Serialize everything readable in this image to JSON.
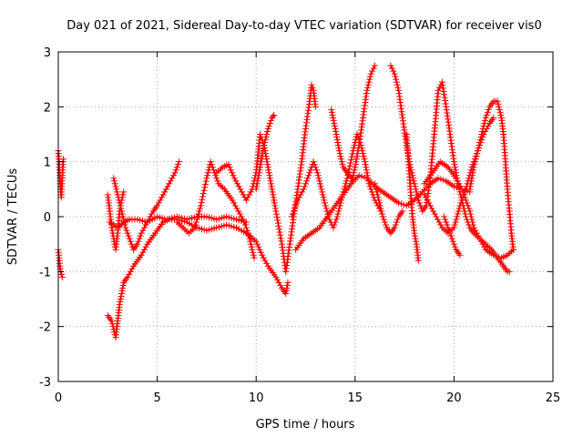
{
  "chart_data": {
    "type": "scatter",
    "title": "Day 021 of 2021, Sidereal Day-to-day VTEC variation (SDTVAR) for receiver vis0",
    "xlabel": "GPS time / hours",
    "ylabel": "SDTVAR / TECUs",
    "xlim": [
      0,
      25
    ],
    "ylim": [
      -3,
      3
    ],
    "xticks": [
      "0",
      "5",
      "10",
      "15",
      "20",
      "25"
    ],
    "yticks": [
      "-3",
      "-2",
      "-1",
      "0",
      "1",
      "2",
      "3"
    ],
    "grid": true,
    "marker": "plus",
    "color": "#ff0000",
    "series": [
      {
        "name": "trace-1",
        "points": [
          [
            0.0,
            1.2
          ],
          [
            0.05,
            0.9
          ],
          [
            0.1,
            0.6
          ],
          [
            0.15,
            0.35
          ],
          [
            0.2,
            0.7
          ],
          [
            0.25,
            1.05
          ]
        ]
      },
      {
        "name": "trace-2",
        "points": [
          [
            0.0,
            -0.6
          ],
          [
            0.05,
            -0.8
          ],
          [
            0.1,
            -0.95
          ],
          [
            0.15,
            -1.05
          ],
          [
            0.2,
            -1.1
          ]
        ]
      },
      {
        "name": "trace-3",
        "points": [
          [
            2.5,
            -1.8
          ],
          [
            2.7,
            -1.9
          ],
          [
            2.9,
            -2.2
          ],
          [
            3.0,
            -1.9
          ],
          [
            3.1,
            -1.6
          ],
          [
            3.2,
            -1.4
          ],
          [
            3.3,
            -1.2
          ],
          [
            3.5,
            -1.1
          ],
          [
            3.8,
            -0.9
          ],
          [
            4.2,
            -0.7
          ],
          [
            4.5,
            -0.5
          ],
          [
            4.9,
            -0.3
          ],
          [
            5.3,
            -0.1
          ],
          [
            5.6,
            -0.05
          ],
          [
            6.0,
            -0.05
          ],
          [
            6.5,
            -0.1
          ],
          [
            7.0,
            -0.2
          ],
          [
            7.5,
            -0.25
          ],
          [
            8.0,
            -0.2
          ],
          [
            8.5,
            -0.15
          ],
          [
            9.0,
            -0.2
          ],
          [
            9.5,
            -0.3
          ],
          [
            10.0,
            -0.45
          ],
          [
            10.3,
            -0.7
          ],
          [
            10.6,
            -0.9
          ],
          [
            11.0,
            -1.1
          ],
          [
            11.3,
            -1.3
          ],
          [
            11.5,
            -1.4
          ],
          [
            11.6,
            -1.2
          ]
        ]
      },
      {
        "name": "trace-4",
        "points": [
          [
            2.5,
            0.4
          ],
          [
            2.6,
            0.1
          ],
          [
            2.7,
            -0.2
          ],
          [
            2.8,
            -0.4
          ],
          [
            2.9,
            -0.6
          ],
          [
            3.0,
            -0.3
          ],
          [
            3.1,
            0.1
          ],
          [
            3.2,
            0.3
          ],
          [
            3.3,
            0.45
          ]
        ]
      },
      {
        "name": "trace-5",
        "points": [
          [
            2.8,
            0.7
          ],
          [
            3.0,
            0.4
          ],
          [
            3.2,
            0.1
          ],
          [
            3.4,
            -0.2
          ],
          [
            3.6,
            -0.4
          ],
          [
            3.8,
            -0.6
          ],
          [
            4.0,
            -0.5
          ],
          [
            4.2,
            -0.3
          ],
          [
            4.5,
            -0.1
          ],
          [
            4.8,
            0.1
          ],
          [
            5.0,
            0.2
          ],
          [
            5.3,
            0.4
          ],
          [
            5.6,
            0.6
          ],
          [
            5.9,
            0.8
          ],
          [
            6.1,
            1.0
          ]
        ]
      },
      {
        "name": "trace-6",
        "points": [
          [
            2.6,
            -0.1
          ],
          [
            3.0,
            -0.2
          ],
          [
            3.3,
            -0.1
          ],
          [
            3.6,
            -0.05
          ],
          [
            4.0,
            -0.05
          ],
          [
            4.5,
            -0.1
          ],
          [
            5.0,
            0.0
          ],
          [
            5.5,
            -0.05
          ],
          [
            6.0,
            0.0
          ],
          [
            6.5,
            -0.05
          ],
          [
            7.0,
            0.0
          ],
          [
            7.5,
            0.0
          ],
          [
            8.0,
            -0.05
          ],
          [
            8.5,
            0.0
          ],
          [
            9.0,
            -0.05
          ],
          [
            9.5,
            -0.1
          ]
        ]
      },
      {
        "name": "trace-7",
        "points": [
          [
            6.0,
            -0.1
          ],
          [
            6.3,
            -0.2
          ],
          [
            6.6,
            -0.3
          ],
          [
            6.9,
            -0.2
          ],
          [
            7.2,
            0.2
          ],
          [
            7.5,
            0.7
          ],
          [
            7.7,
            1.0
          ],
          [
            7.9,
            0.8
          ],
          [
            8.1,
            0.6
          ],
          [
            8.4,
            0.5
          ],
          [
            8.8,
            0.3
          ],
          [
            9.1,
            0.1
          ],
          [
            9.4,
            -0.1
          ],
          [
            9.6,
            -0.3
          ],
          [
            9.8,
            -0.6
          ],
          [
            9.9,
            -0.75
          ]
        ]
      },
      {
        "name": "trace-8",
        "points": [
          [
            8.0,
            0.8
          ],
          [
            8.3,
            0.9
          ],
          [
            8.6,
            0.95
          ],
          [
            8.9,
            0.7
          ],
          [
            9.2,
            0.5
          ],
          [
            9.5,
            0.3
          ],
          [
            9.8,
            0.5
          ],
          [
            10.0,
            0.8
          ],
          [
            10.2,
            1.5
          ],
          [
            10.4,
            1.3
          ],
          [
            10.6,
            0.9
          ],
          [
            10.8,
            0.5
          ],
          [
            11.0,
            0.1
          ],
          [
            11.3,
            -0.5
          ],
          [
            11.5,
            -1.0
          ]
        ]
      },
      {
        "name": "trace-9",
        "points": [
          [
            10.0,
            0.5
          ],
          [
            10.2,
            0.9
          ],
          [
            10.4,
            1.3
          ],
          [
            10.6,
            1.6
          ],
          [
            10.8,
            1.8
          ],
          [
            10.9,
            1.85
          ]
        ]
      },
      {
        "name": "trace-10",
        "points": [
          [
            11.5,
            -1.0
          ],
          [
            11.7,
            -0.5
          ],
          [
            11.9,
            0.0
          ],
          [
            12.1,
            0.5
          ],
          [
            12.3,
            1.0
          ],
          [
            12.5,
            1.6
          ],
          [
            12.7,
            2.1
          ],
          [
            12.8,
            2.4
          ],
          [
            12.9,
            2.3
          ],
          [
            13.0,
            2.0
          ]
        ]
      },
      {
        "name": "trace-11",
        "points": [
          [
            11.8,
            0.0
          ],
          [
            12.1,
            0.3
          ],
          [
            12.4,
            0.5
          ],
          [
            12.7,
            0.8
          ],
          [
            12.9,
            1.0
          ],
          [
            13.1,
            0.8
          ],
          [
            13.3,
            0.5
          ],
          [
            13.5,
            0.2
          ],
          [
            13.7,
            -0.05
          ],
          [
            13.9,
            -0.2
          ],
          [
            14.1,
            0.0
          ],
          [
            14.3,
            0.3
          ],
          [
            14.6,
            0.7
          ],
          [
            14.9,
            1.2
          ],
          [
            15.1,
            1.5
          ],
          [
            15.3,
            1.3
          ],
          [
            15.5,
            1.0
          ],
          [
            15.7,
            0.6
          ],
          [
            16.0,
            0.3
          ],
          [
            16.3,
            0.1
          ]
        ]
      },
      {
        "name": "trace-12",
        "points": [
          [
            12.0,
            -0.6
          ],
          [
            12.4,
            -0.4
          ],
          [
            12.8,
            -0.3
          ],
          [
            13.2,
            -0.2
          ],
          [
            13.6,
            0.0
          ],
          [
            14.0,
            0.2
          ],
          [
            14.4,
            0.4
          ],
          [
            14.8,
            0.6
          ],
          [
            15.2,
            0.75
          ],
          [
            15.6,
            0.7
          ],
          [
            16.0,
            0.55
          ],
          [
            16.4,
            0.45
          ],
          [
            16.8,
            0.35
          ],
          [
            17.2,
            0.25
          ],
          [
            17.6,
            0.2
          ],
          [
            18.0,
            0.3
          ],
          [
            18.4,
            0.45
          ],
          [
            18.8,
            0.6
          ],
          [
            19.2,
            0.7
          ],
          [
            19.6,
            0.65
          ],
          [
            20.0,
            0.55
          ],
          [
            20.4,
            0.5
          ],
          [
            20.8,
            0.45
          ]
        ]
      },
      {
        "name": "trace-13",
        "points": [
          [
            13.8,
            1.95
          ],
          [
            14.0,
            1.6
          ],
          [
            14.2,
            1.2
          ],
          [
            14.4,
            0.9
          ],
          [
            14.6,
            0.8
          ],
          [
            14.8,
            0.7
          ]
        ]
      },
      {
        "name": "trace-14",
        "points": [
          [
            14.8,
            0.6
          ],
          [
            15.0,
            0.9
          ],
          [
            15.2,
            1.3
          ],
          [
            15.4,
            1.8
          ],
          [
            15.6,
            2.3
          ],
          [
            15.8,
            2.6
          ],
          [
            16.0,
            2.75
          ]
        ]
      },
      {
        "name": "trace-15",
        "points": [
          [
            16.0,
            0.6
          ],
          [
            16.2,
            0.3
          ],
          [
            16.4,
            0.0
          ],
          [
            16.6,
            -0.2
          ],
          [
            16.8,
            -0.3
          ],
          [
            17.0,
            -0.2
          ],
          [
            17.2,
            0.0
          ],
          [
            17.4,
            0.1
          ]
        ]
      },
      {
        "name": "trace-16",
        "points": [
          [
            16.8,
            2.75
          ],
          [
            17.0,
            2.6
          ],
          [
            17.2,
            2.3
          ],
          [
            17.4,
            1.8
          ],
          [
            17.6,
            1.3
          ],
          [
            17.8,
            0.9
          ],
          [
            18.0,
            0.6
          ],
          [
            18.2,
            0.3
          ],
          [
            18.4,
            0.1
          ],
          [
            18.6,
            0.2
          ],
          [
            18.8,
            0.7
          ],
          [
            19.0,
            1.5
          ],
          [
            19.2,
            2.3
          ],
          [
            19.4,
            2.45
          ],
          [
            19.6,
            2.0
          ],
          [
            19.8,
            1.5
          ],
          [
            20.0,
            1.0
          ],
          [
            20.2,
            0.6
          ],
          [
            20.4,
            0.3
          ],
          [
            20.6,
            0.0
          ],
          [
            20.8,
            -0.2
          ],
          [
            21.0,
            -0.3
          ],
          [
            21.3,
            -0.4
          ],
          [
            21.6,
            -0.5
          ],
          [
            21.9,
            -0.6
          ],
          [
            22.2,
            -0.75
          ],
          [
            22.5,
            -0.9
          ],
          [
            22.7,
            -1.0
          ],
          [
            22.8,
            -1.0
          ]
        ]
      },
      {
        "name": "trace-17",
        "points": [
          [
            17.6,
            1.5
          ],
          [
            17.7,
            1.0
          ],
          [
            17.8,
            0.5
          ],
          [
            17.9,
            0.0
          ],
          [
            18.0,
            -0.3
          ],
          [
            18.1,
            -0.5
          ],
          [
            18.2,
            -0.8
          ]
        ]
      },
      {
        "name": "trace-18",
        "points": [
          [
            18.5,
            0.4
          ],
          [
            18.8,
            0.2
          ],
          [
            19.1,
            0.0
          ],
          [
            19.4,
            -0.2
          ],
          [
            19.7,
            -0.3
          ],
          [
            20.0,
            -0.2
          ],
          [
            20.3,
            0.2
          ],
          [
            20.6,
            0.5
          ],
          [
            20.9,
            0.9
          ],
          [
            21.2,
            1.2
          ],
          [
            21.5,
            1.5
          ],
          [
            21.8,
            1.7
          ],
          [
            22.0,
            1.8
          ]
        ]
      },
      {
        "name": "trace-19",
        "points": [
          [
            18.5,
            0.6
          ],
          [
            18.9,
            0.8
          ],
          [
            19.3,
            1.0
          ],
          [
            19.7,
            0.9
          ],
          [
            20.1,
            0.7
          ],
          [
            20.4,
            0.5
          ],
          [
            20.6,
            0.3
          ],
          [
            20.8,
            0.1
          ],
          [
            21.0,
            -0.2
          ],
          [
            21.3,
            -0.4
          ],
          [
            21.6,
            -0.6
          ],
          [
            22.0,
            -0.7
          ],
          [
            22.4,
            -0.75
          ],
          [
            22.7,
            -0.7
          ],
          [
            23.0,
            -0.6
          ]
        ]
      },
      {
        "name": "trace-20",
        "points": [
          [
            19.5,
            0.0
          ],
          [
            19.7,
            -0.2
          ],
          [
            19.9,
            -0.4
          ],
          [
            20.1,
            -0.6
          ],
          [
            20.3,
            -0.7
          ]
        ]
      },
      {
        "name": "trace-21",
        "points": [
          [
            20.8,
            0.5
          ],
          [
            21.0,
            0.9
          ],
          [
            21.2,
            1.2
          ],
          [
            21.4,
            1.5
          ],
          [
            21.6,
            1.8
          ],
          [
            21.8,
            2.0
          ],
          [
            22.0,
            2.1
          ],
          [
            22.2,
            2.1
          ],
          [
            22.4,
            1.8
          ],
          [
            22.5,
            1.5
          ],
          [
            22.6,
            1.0
          ],
          [
            22.7,
            0.5
          ],
          [
            22.8,
            0.1
          ],
          [
            22.9,
            -0.3
          ],
          [
            23.0,
            -0.6
          ]
        ]
      }
    ]
  }
}
